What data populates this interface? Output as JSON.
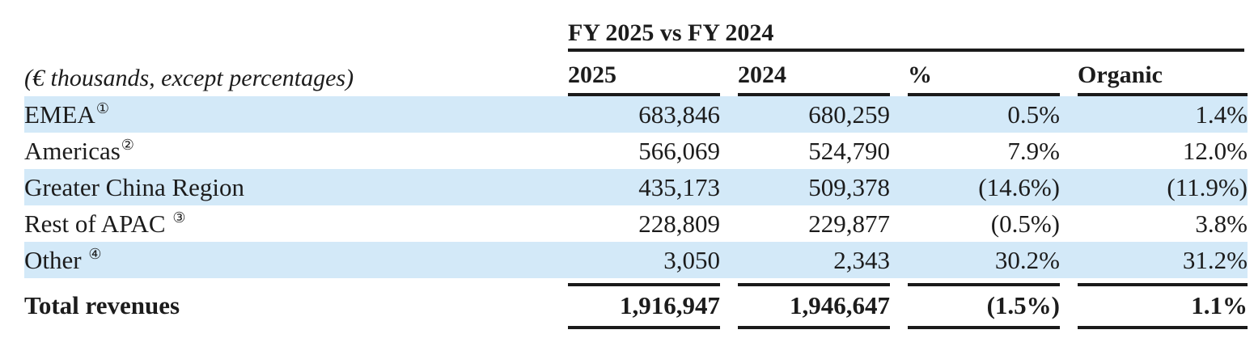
{
  "table": {
    "caption": "(€ thousands, except percentages)",
    "comparison_header": "FY 2025 vs FY 2024",
    "columns": {
      "fy2025": "2025",
      "fy2024": "2024",
      "pct": "%",
      "organic": "Organic"
    },
    "rows": [
      {
        "label": "EMEA",
        "footnote": "①",
        "fy2025": "683,846",
        "fy2024": "680,259",
        "pct": "0.5%",
        "organic": "1.4%"
      },
      {
        "label": "Americas",
        "footnote": "②",
        "fy2025": "566,069",
        "fy2024": "524,790",
        "pct": "7.9%",
        "organic": "12.0%"
      },
      {
        "label": "Greater China Region",
        "footnote": "",
        "fy2025": "435,173",
        "fy2024": "509,378",
        "pct": "(14.6%)",
        "organic": "(11.9%)"
      },
      {
        "label": "Rest of APAC ",
        "footnote": "③",
        "fy2025": "228,809",
        "fy2024": "229,877",
        "pct": "(0.5%)",
        "organic": "3.8%"
      },
      {
        "label": "Other ",
        "footnote": "④",
        "fy2025": "3,050",
        "fy2024": "2,343",
        "pct": "30.2%",
        "organic": "31.2%"
      }
    ],
    "total": {
      "label": "Total revenues",
      "fy2025": "1,916,947",
      "fy2024": "1,946,647",
      "pct": "(1.5%)",
      "organic": "1.1%"
    }
  },
  "colors": {
    "row_highlight": "#d3e9f8",
    "text": "#1c1c1c",
    "rule": "#1a1a1a"
  }
}
